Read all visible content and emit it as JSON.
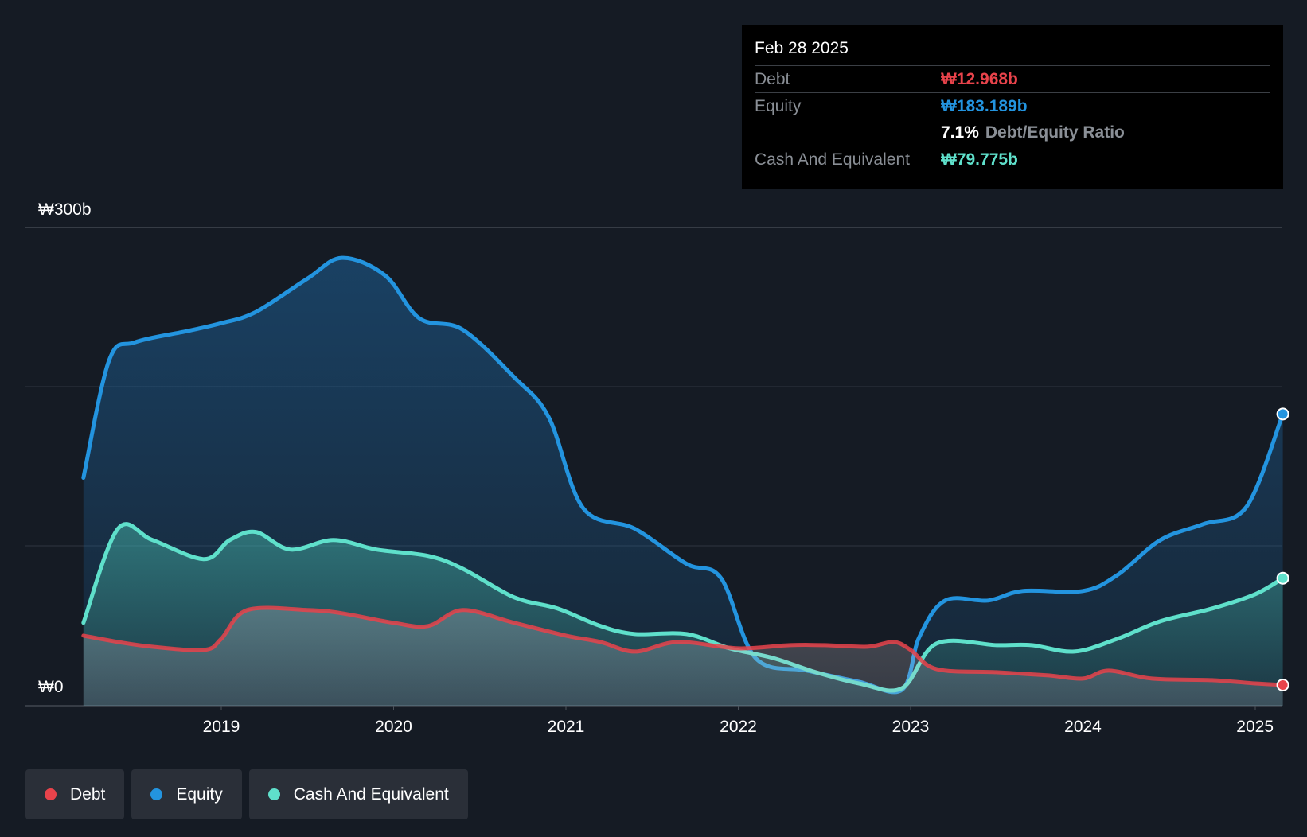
{
  "chart_data": {
    "type": "area",
    "currency": "₩",
    "y_axis": {
      "top_label": "₩300b",
      "bottom_label": "₩0",
      "ylim": [
        0,
        300
      ],
      "unit": "b"
    },
    "x_ticks": [
      "2019",
      "2020",
      "2021",
      "2022",
      "2023",
      "2024",
      "2025"
    ],
    "series": [
      {
        "name": "Debt",
        "color": "#e8434b",
        "points": [
          [
            2018.2,
            44
          ],
          [
            2018.4,
            40
          ],
          [
            2018.6,
            37
          ],
          [
            2018.9,
            35
          ],
          [
            2019.0,
            42
          ],
          [
            2019.15,
            60
          ],
          [
            2019.5,
            60
          ],
          [
            2019.7,
            58
          ],
          [
            2020.0,
            52
          ],
          [
            2020.2,
            50
          ],
          [
            2020.4,
            60
          ],
          [
            2020.7,
            52
          ],
          [
            2021.0,
            44
          ],
          [
            2021.2,
            40
          ],
          [
            2021.4,
            34
          ],
          [
            2021.65,
            40
          ],
          [
            2022.0,
            36
          ],
          [
            2022.3,
            38
          ],
          [
            2022.5,
            38
          ],
          [
            2022.75,
            37
          ],
          [
            2022.9,
            40
          ],
          [
            2023.0,
            35
          ],
          [
            2023.15,
            23
          ],
          [
            2023.5,
            21
          ],
          [
            2023.8,
            19
          ],
          [
            2024.0,
            17
          ],
          [
            2024.15,
            22
          ],
          [
            2024.4,
            17
          ],
          [
            2024.75,
            16
          ],
          [
            2025.0,
            14
          ],
          [
            2025.16,
            13
          ]
        ]
      },
      {
        "name": "Equity",
        "color": "#2394df",
        "points": [
          [
            2018.2,
            143
          ],
          [
            2018.35,
            217
          ],
          [
            2018.5,
            228
          ],
          [
            2018.8,
            235
          ],
          [
            2019.0,
            240
          ],
          [
            2019.2,
            247
          ],
          [
            2019.5,
            268
          ],
          [
            2019.7,
            281
          ],
          [
            2019.95,
            270
          ],
          [
            2020.15,
            243
          ],
          [
            2020.4,
            236
          ],
          [
            2020.7,
            206
          ],
          [
            2020.9,
            181
          ],
          [
            2021.1,
            124
          ],
          [
            2021.4,
            111
          ],
          [
            2021.7,
            89
          ],
          [
            2021.9,
            80
          ],
          [
            2022.1,
            30
          ],
          [
            2022.4,
            22
          ],
          [
            2022.7,
            15
          ],
          [
            2022.95,
            10
          ],
          [
            2023.05,
            43
          ],
          [
            2023.2,
            66
          ],
          [
            2023.45,
            66
          ],
          [
            2023.65,
            72
          ],
          [
            2024.0,
            72
          ],
          [
            2024.2,
            82
          ],
          [
            2024.45,
            104
          ],
          [
            2024.7,
            114
          ],
          [
            2024.95,
            125
          ],
          [
            2025.16,
            183
          ]
        ]
      },
      {
        "name": "Cash And Equivalent",
        "color": "#5fe0cb",
        "points": [
          [
            2018.2,
            52
          ],
          [
            2018.4,
            111
          ],
          [
            2018.6,
            104
          ],
          [
            2018.9,
            92
          ],
          [
            2019.05,
            104
          ],
          [
            2019.2,
            109
          ],
          [
            2019.4,
            98
          ],
          [
            2019.65,
            104
          ],
          [
            2019.9,
            98
          ],
          [
            2020.2,
            94
          ],
          [
            2020.4,
            86
          ],
          [
            2020.7,
            68
          ],
          [
            2020.95,
            61
          ],
          [
            2021.2,
            50
          ],
          [
            2021.4,
            45
          ],
          [
            2021.7,
            45
          ],
          [
            2021.95,
            36
          ],
          [
            2022.2,
            30
          ],
          [
            2022.45,
            21
          ],
          [
            2022.7,
            14
          ],
          [
            2022.95,
            11
          ],
          [
            2023.15,
            39
          ],
          [
            2023.5,
            38
          ],
          [
            2023.7,
            38
          ],
          [
            2023.95,
            34
          ],
          [
            2024.2,
            42
          ],
          [
            2024.45,
            53
          ],
          [
            2024.75,
            61
          ],
          [
            2025.0,
            70
          ],
          [
            2025.16,
            80
          ]
        ]
      }
    ],
    "tooltip": {
      "date": "Feb 28 2025",
      "debt_label": "Debt",
      "debt_value": "₩12.968b",
      "equity_label": "Equity",
      "equity_value": "₩183.189b",
      "ratio_value": "7.1%",
      "ratio_label": "Debt/Equity Ratio",
      "cash_label": "Cash And Equivalent",
      "cash_value": "₩79.775b"
    },
    "legend": [
      "Debt",
      "Equity",
      "Cash And Equivalent"
    ]
  }
}
